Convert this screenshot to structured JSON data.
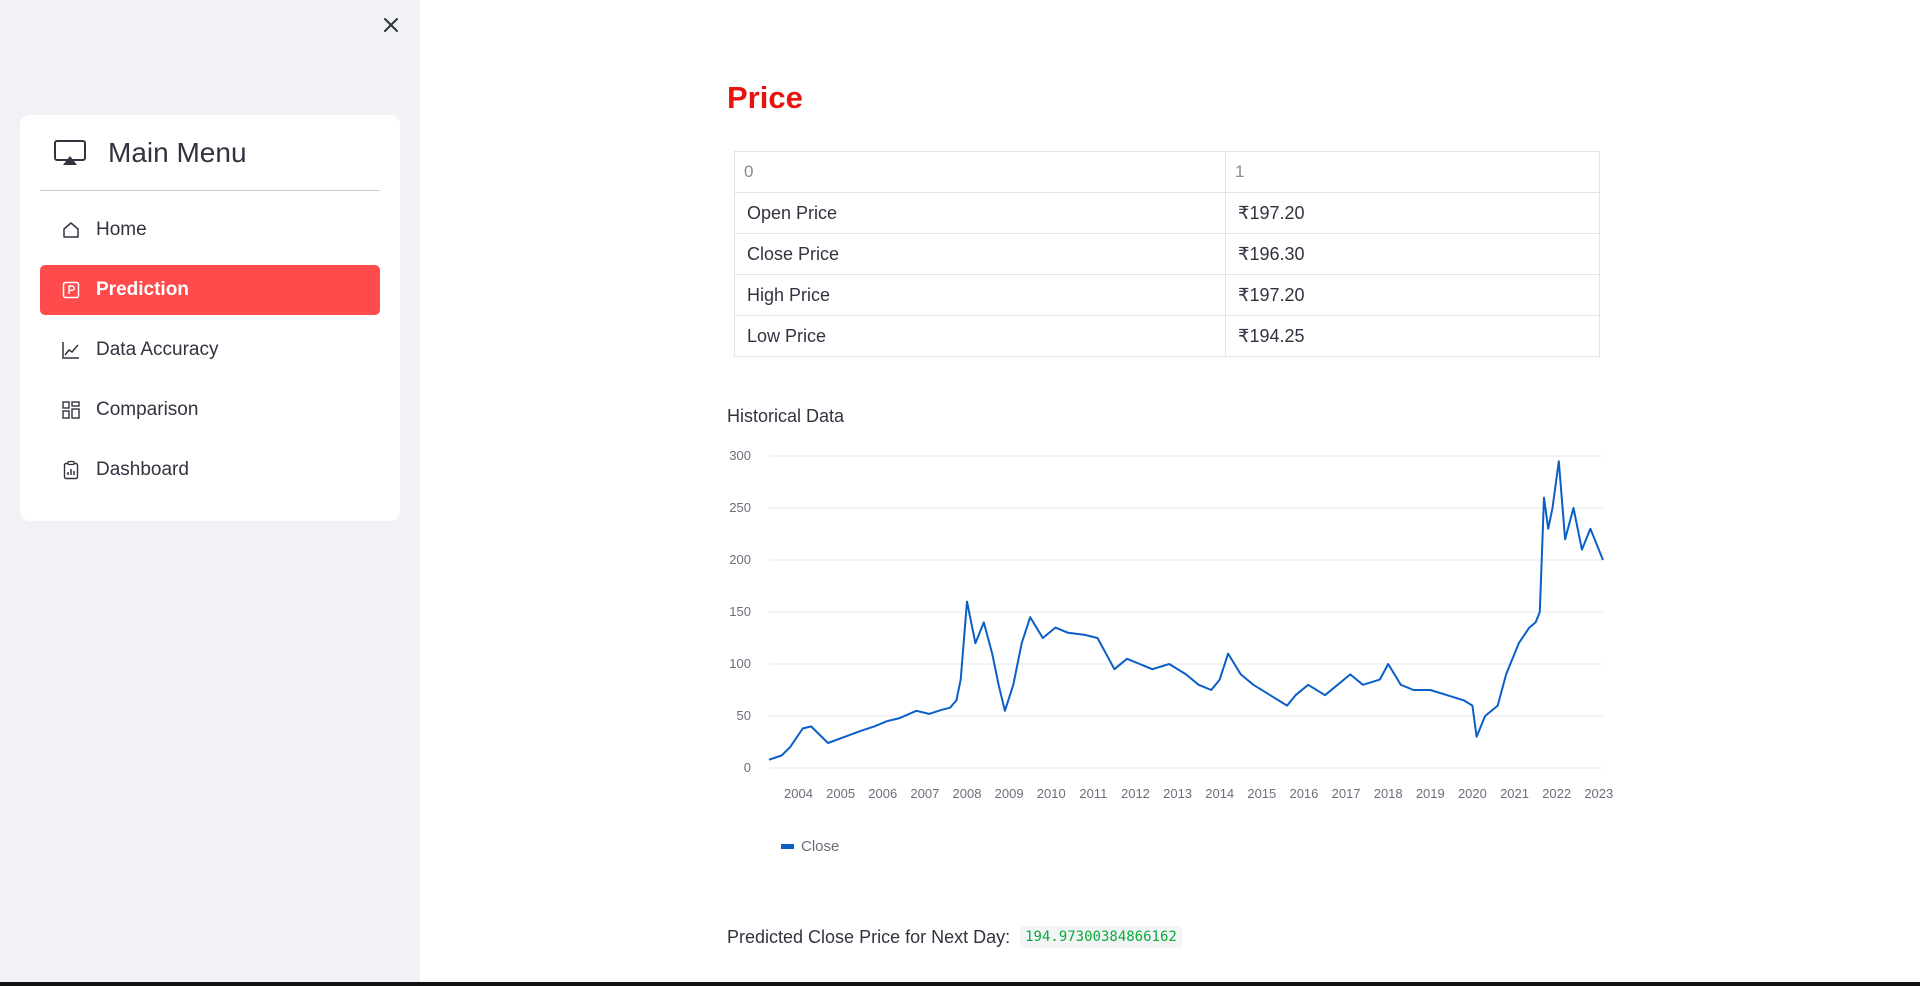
{
  "sidebar": {
    "menu_title": "Main Menu",
    "items": [
      {
        "label": "Home",
        "icon": "house-icon",
        "active": false
      },
      {
        "label": "Prediction",
        "icon": "p-square-icon",
        "active": true
      },
      {
        "label": "Data Accuracy",
        "icon": "graph-up-icon",
        "active": false
      },
      {
        "label": "Comparison",
        "icon": "layout-grid-icon",
        "active": false
      },
      {
        "label": "Dashboard",
        "icon": "clipboard-data-icon",
        "active": false
      }
    ]
  },
  "main": {
    "title": "Price",
    "table": {
      "headers": [
        "0",
        "1"
      ],
      "rows": [
        [
          "Open Price",
          "₹197.20"
        ],
        [
          "Close Price",
          "₹196.30"
        ],
        [
          "High Price",
          "₹197.20"
        ],
        [
          "Low Price",
          "₹194.25"
        ]
      ]
    },
    "chart_label": "Historical Data",
    "prediction_label": "Predicted Close Price for Next Day:",
    "prediction_value": "194.97300384866162"
  },
  "colors": {
    "accent": "#ff4b4b",
    "title_red": "#e8140f",
    "line": "#0a5fc6",
    "code_green": "#09ab3b"
  },
  "chart_data": {
    "type": "line",
    "title": "",
    "xlabel": "",
    "ylabel": "",
    "ylim": [
      0,
      300
    ],
    "yticks": [
      0,
      50,
      100,
      150,
      200,
      250,
      300
    ],
    "xticks": [
      "2004",
      "2005",
      "2006",
      "2007",
      "2008",
      "2009",
      "2010",
      "2011",
      "2012",
      "2013",
      "2014",
      "2015",
      "2016",
      "2017",
      "2018",
      "2019",
      "2020",
      "2021",
      "2022",
      "2023"
    ],
    "grid": true,
    "legend": "bottom-left",
    "series": [
      {
        "name": "Close",
        "x": [
          2003.5,
          2003.8,
          2004.0,
          2004.3,
          2004.5,
          2004.9,
          2005.3,
          2005.7,
          2006.0,
          2006.3,
          2006.6,
          2007.0,
          2007.3,
          2007.6,
          2007.8,
          2007.95,
          2008.05,
          2008.2,
          2008.4,
          2008.6,
          2008.8,
          2008.95,
          2009.1,
          2009.3,
          2009.5,
          2009.7,
          2010.0,
          2010.3,
          2010.6,
          2011.0,
          2011.3,
          2011.5,
          2011.7,
          2012.0,
          2012.3,
          2012.6,
          2013.0,
          2013.4,
          2013.7,
          2014.0,
          2014.2,
          2014.4,
          2014.7,
          2015.0,
          2015.4,
          2015.8,
          2016.0,
          2016.3,
          2016.7,
          2017.0,
          2017.3,
          2017.6,
          2018.0,
          2018.2,
          2018.5,
          2018.8,
          2019.2,
          2019.6,
          2020.0,
          2020.2,
          2020.3,
          2020.5,
          2020.8,
          2021.0,
          2021.3,
          2021.55,
          2021.7,
          2021.8,
          2021.9,
          2022.0,
          2022.1,
          2022.25,
          2022.4,
          2022.6,
          2022.8,
          2023.0,
          2023.2,
          2023.3
        ],
        "values": [
          8,
          12,
          20,
          38,
          40,
          24,
          30,
          36,
          40,
          45,
          48,
          55,
          52,
          56,
          58,
          65,
          85,
          160,
          120,
          140,
          110,
          80,
          55,
          80,
          120,
          145,
          125,
          135,
          130,
          128,
          125,
          110,
          95,
          105,
          100,
          95,
          100,
          90,
          80,
          75,
          85,
          110,
          90,
          80,
          70,
          60,
          70,
          80,
          70,
          80,
          90,
          80,
          85,
          100,
          80,
          75,
          75,
          70,
          65,
          60,
          30,
          50,
          60,
          90,
          120,
          135,
          140,
          150,
          260,
          230,
          250,
          295,
          220,
          250,
          210,
          230,
          210,
          200
        ]
      }
    ]
  }
}
